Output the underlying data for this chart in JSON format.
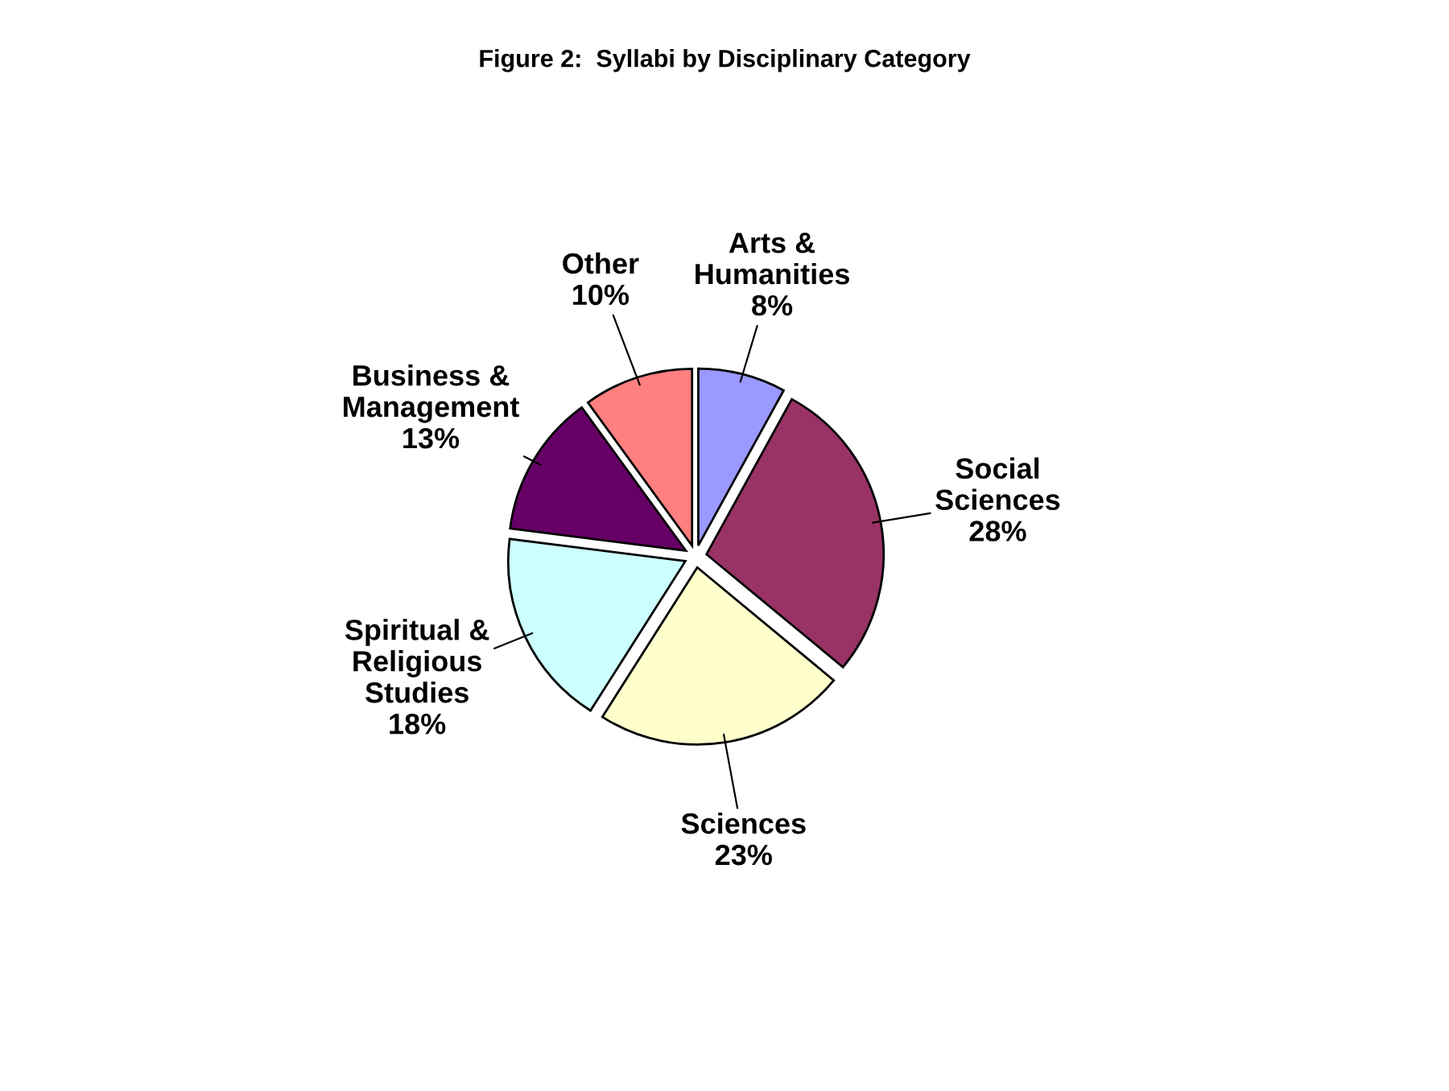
{
  "chart_data": {
    "type": "pie",
    "title": "Figure 2:  Syllabi by Disciplinary Category",
    "categories": [
      "Arts &\nHumanities",
      "Social\nSciences",
      "Sciences",
      "Spiritual &\nReligious\nStudies",
      "Business &\nManagement",
      "Other"
    ],
    "values": [
      8,
      28,
      23,
      18,
      13,
      10
    ],
    "colors": [
      "#9999ff",
      "#993366",
      "#ffffcc",
      "#ccffff",
      "#660066",
      "#ff8080"
    ],
    "value_labels": [
      "8%",
      "28%",
      "23%",
      "18%",
      "13%",
      "10%"
    ],
    "data_labels": true,
    "legend": false
  }
}
